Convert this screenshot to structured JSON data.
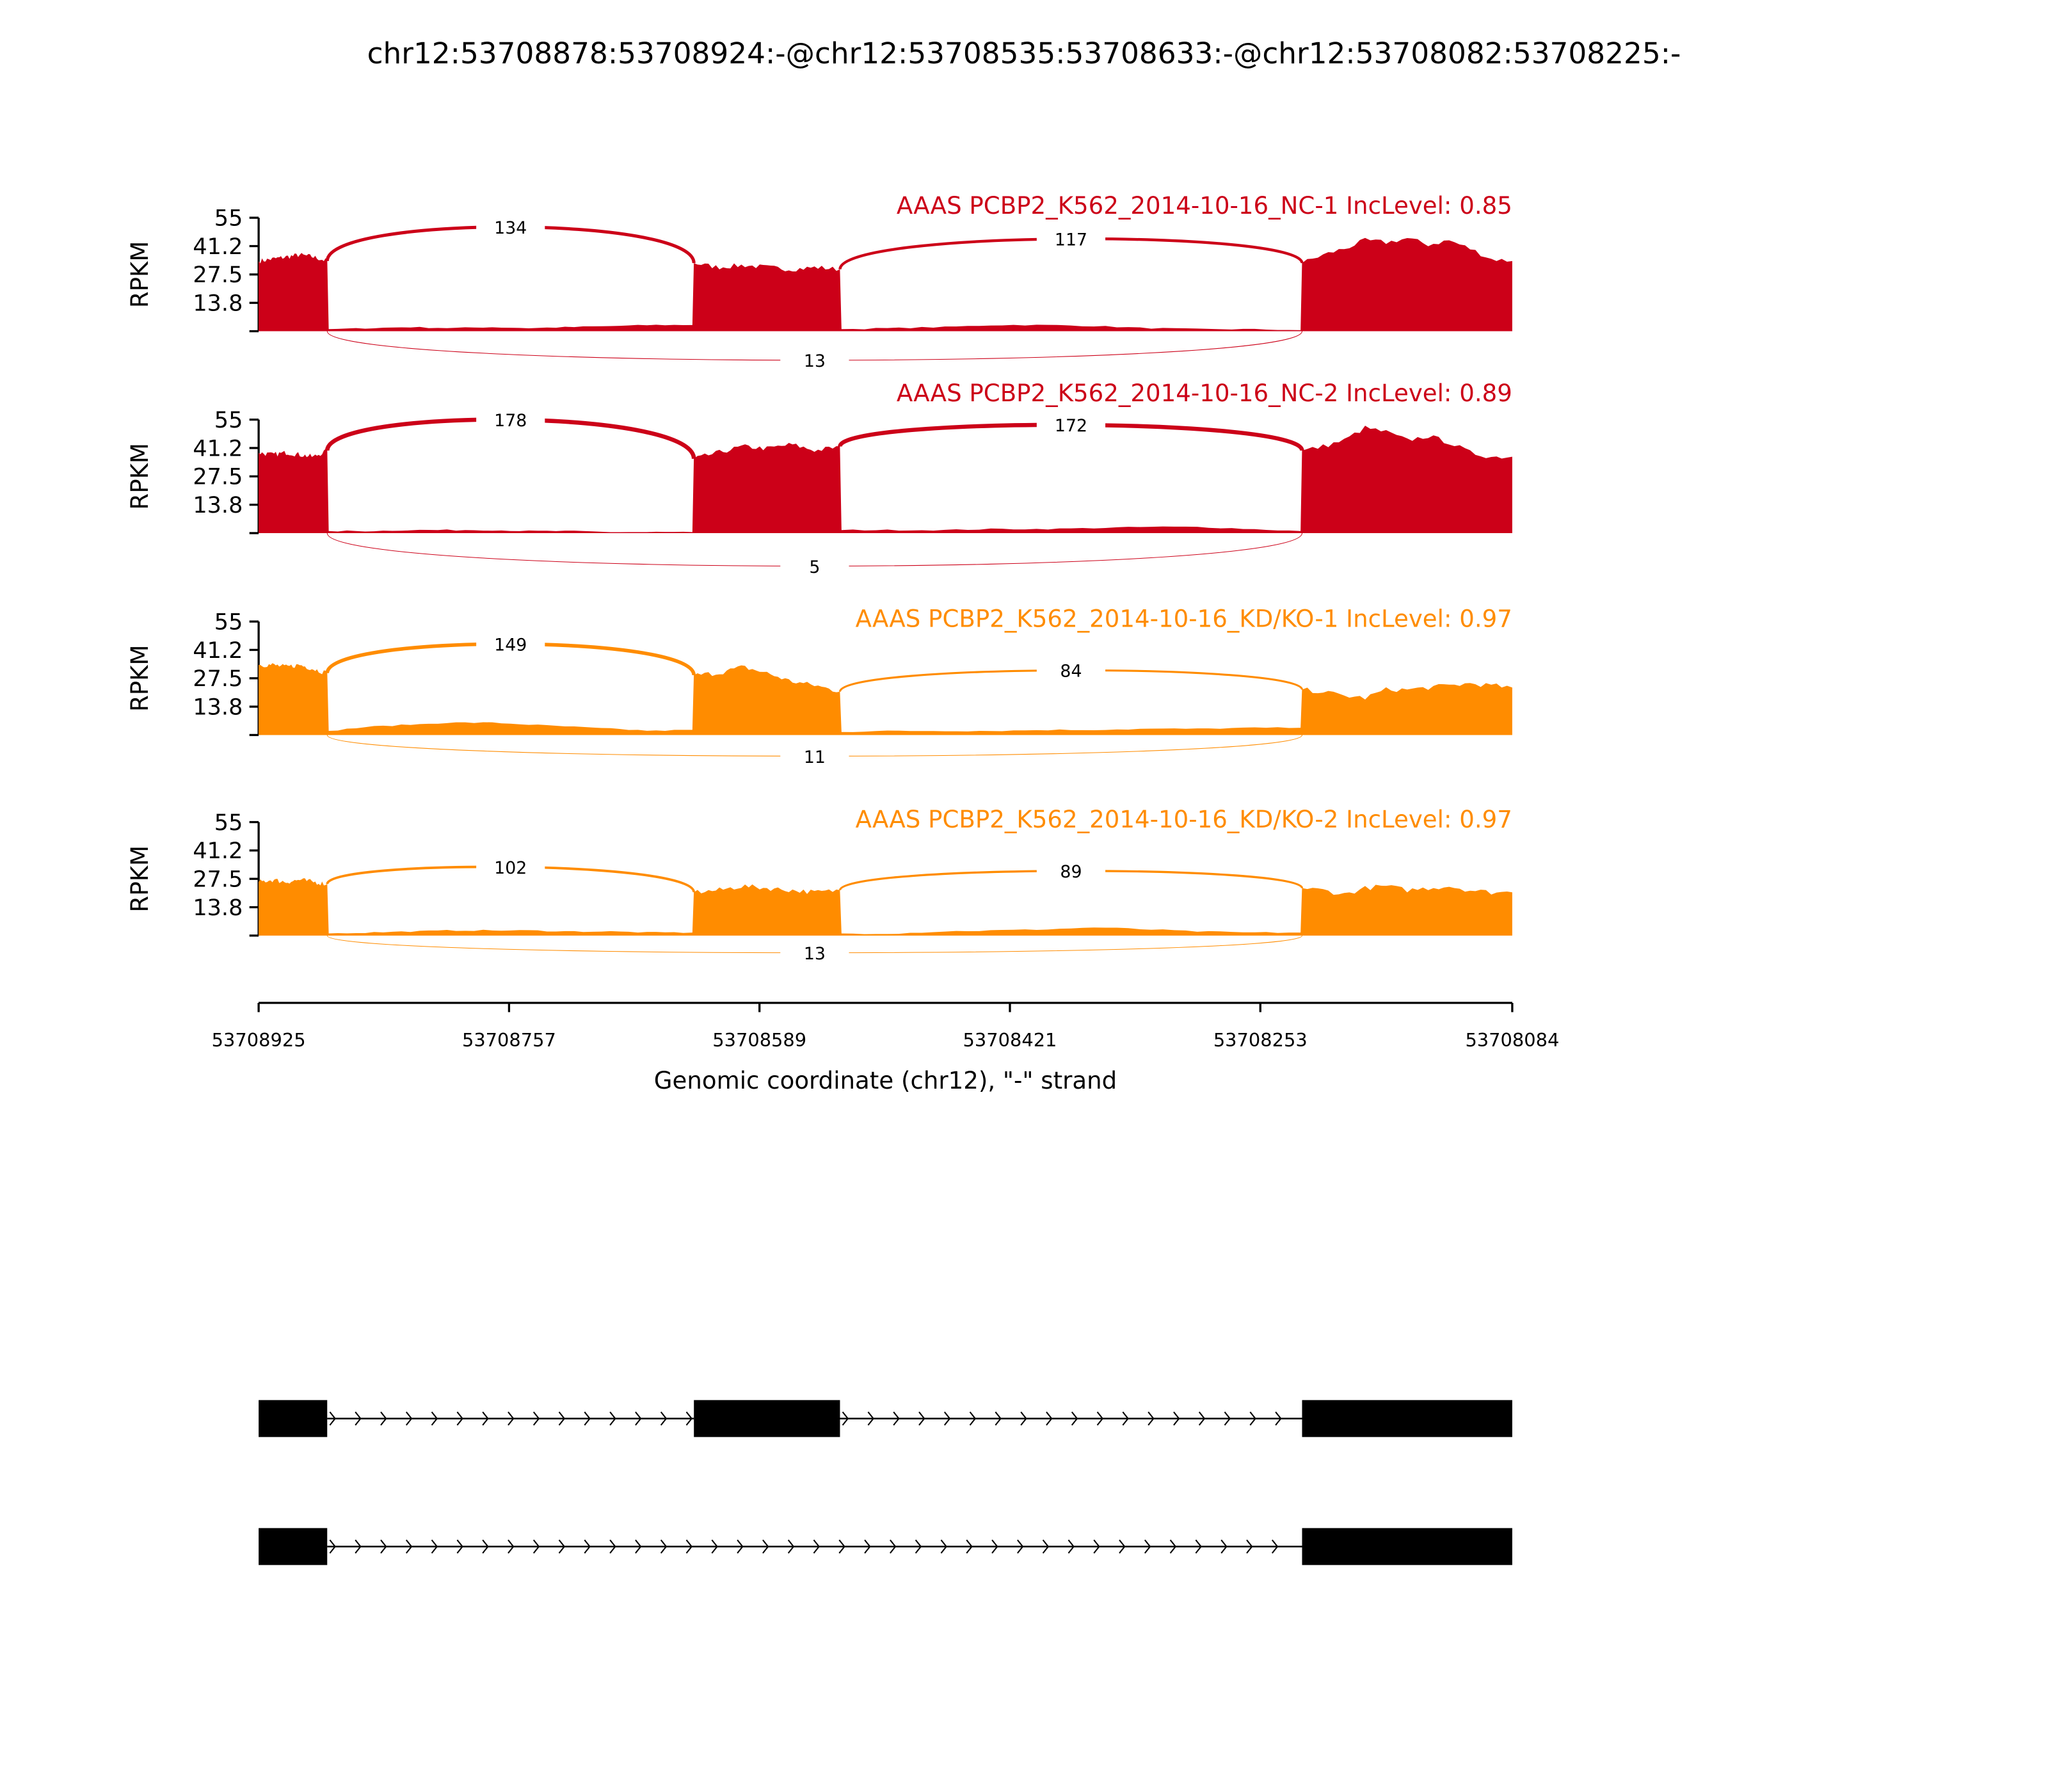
{
  "chart_data": {
    "type": "area",
    "title": "chr12:53708878:53708924:-@chr12:53708535:53708633:-@chr12:53708082:53708225:-",
    "xlabel": "Genomic coordinate (chr12), \"-\" strand",
    "ylabel": "RPKM",
    "xlim": [
      53708925,
      53708084
    ],
    "ylim": [
      0,
      55
    ],
    "x_ticks": [
      "53708925",
      "53708757",
      "53708589",
      "53708421",
      "53708253",
      "53708084"
    ],
    "y_ticks": [
      "55",
      "41.2",
      "27.5",
      "13.8"
    ],
    "y_tick_values": [
      55,
      41.25,
      27.5,
      13.75,
      0
    ],
    "colors": {
      "NC": "#cc0018",
      "KD": "#ff8c00",
      "gene": "#000000"
    },
    "segments": [
      {
        "name": "exon1",
        "start": 53708925,
        "end": 53708879
      },
      {
        "name": "intron1",
        "start": 53708878,
        "end": 53708634
      },
      {
        "name": "exon2",
        "start": 53708633,
        "end": 53708535
      },
      {
        "name": "intron2",
        "start": 53708534,
        "end": 53708226
      },
      {
        "name": "exon3",
        "start": 53708225,
        "end": 53708084
      }
    ],
    "samples": [
      {
        "title": "AAAS PCBP2_K562_2014-10-16_NC-1 IncLevel: 0.85",
        "group": "NC",
        "coverage": [
          [
            34,
            35,
            36,
            37,
            36,
            34
          ],
          [
            1,
            1.5,
            2,
            1.5,
            2,
            1.5,
            2,
            2.5,
            3,
            3
          ],
          [
            33,
            31,
            32,
            31,
            30,
            31,
            30
          ],
          [
            1,
            1.5,
            2,
            3,
            3,
            2.5,
            1.5,
            1,
            1,
            0.5
          ],
          [
            33,
            37,
            40,
            44,
            43,
            45,
            42,
            44,
            40,
            35,
            34
          ]
        ],
        "junctions": [
          {
            "from": "exon1",
            "to": "exon2",
            "count": 134,
            "side": "top"
          },
          {
            "from": "exon2",
            "to": "exon3",
            "count": 117,
            "side": "top"
          },
          {
            "from": "exon1",
            "to": "exon3",
            "count": 13,
            "side": "bottom"
          }
        ]
      },
      {
        "title": "AAAS PCBP2_K562_2014-10-16_NC-2 IncLevel: 0.89",
        "group": "NC",
        "coverage": [
          [
            39,
            38,
            39,
            38,
            37,
            40
          ],
          [
            1,
            1,
            1.5,
            1.5,
            1.5,
            1,
            1,
            0.5,
            0.5,
            0.5
          ],
          [
            36,
            39,
            42,
            41,
            43,
            40,
            42
          ],
          [
            1.5,
            1.5,
            1.5,
            2,
            2,
            2.5,
            3,
            3,
            2,
            1
          ],
          [
            40,
            42,
            45,
            51,
            49,
            45,
            47,
            44,
            39,
            37,
            37
          ]
        ],
        "junctions": [
          {
            "from": "exon1",
            "to": "exon2",
            "count": 178,
            "side": "top"
          },
          {
            "from": "exon2",
            "to": "exon3",
            "count": 172,
            "side": "top"
          },
          {
            "from": "exon1",
            "to": "exon3",
            "count": 5,
            "side": "bottom"
          }
        ]
      },
      {
        "title": "AAAS PCBP2_K562_2014-10-16_KD/KO-1 IncLevel: 0.97",
        "group": "KD",
        "coverage": [
          [
            34,
            34,
            33,
            34,
            32,
            30
          ],
          [
            2,
            4,
            5,
            6,
            6,
            5,
            4,
            3,
            2,
            2.5
          ],
          [
            29,
            30,
            33,
            30,
            26,
            24,
            21
          ],
          [
            1.5,
            2,
            2,
            2,
            2.5,
            2.5,
            3,
            3,
            3.5,
            3.5
          ],
          [
            22,
            21,
            19,
            18,
            22,
            22,
            23,
            24,
            25,
            24,
            23
          ]
        ],
        "junctions": [
          {
            "from": "exon1",
            "to": "exon2",
            "count": 149,
            "side": "top"
          },
          {
            "from": "exon2",
            "to": "exon3",
            "count": 84,
            "side": "top"
          },
          {
            "from": "exon1",
            "to": "exon3",
            "count": 11,
            "side": "bottom"
          }
        ]
      },
      {
        "title": "AAAS PCBP2_K562_2014-10-16_KD/KO-2 IncLevel: 0.97",
        "group": "KD",
        "coverage": [
          [
            26,
            27,
            26,
            27,
            26,
            25
          ],
          [
            1,
            1.5,
            2,
            2.5,
            2.5,
            2.5,
            2,
            2,
            1.5,
            1.5
          ],
          [
            21,
            22,
            24,
            23,
            22,
            21,
            22
          ],
          [
            1,
            1,
            2,
            2.5,
            3,
            4,
            3,
            2,
            1.5,
            1.5
          ],
          [
            23,
            22,
            20,
            23,
            24,
            22,
            23,
            24,
            22,
            21,
            21
          ]
        ],
        "junctions": [
          {
            "from": "exon1",
            "to": "exon2",
            "count": 102,
            "side": "top"
          },
          {
            "from": "exon2",
            "to": "exon3",
            "count": 89,
            "side": "top"
          },
          {
            "from": "exon1",
            "to": "exon3",
            "count": 13,
            "side": "bottom"
          }
        ]
      }
    ],
    "transcripts": [
      {
        "exons": [
          [
            53708925,
            53708879
          ],
          [
            53708633,
            53708535
          ],
          [
            53708225,
            53708084
          ]
        ]
      },
      {
        "exons": [
          [
            53708925,
            53708879
          ],
          [
            53708225,
            53708084
          ]
        ]
      }
    ]
  }
}
